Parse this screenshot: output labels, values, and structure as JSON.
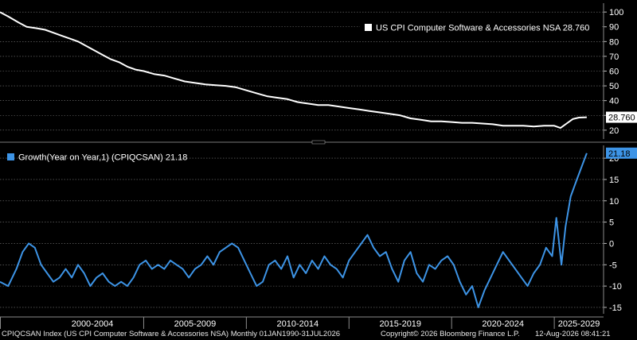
{
  "chart_data": [
    {
      "type": "line",
      "series": [
        {
          "name": "US CPI Computer Software & Accessories NSA",
          "last_value": "28.760",
          "color": "#ffffff",
          "points": [
            [
              1998.0,
              100
            ],
            [
              1998.4,
              97
            ],
            [
              1998.9,
              93
            ],
            [
              1999.3,
              90
            ],
            [
              1999.8,
              89
            ],
            [
              2000.2,
              88
            ],
            [
              2000.6,
              86
            ],
            [
              2001.0,
              84
            ],
            [
              2001.4,
              82
            ],
            [
              2001.8,
              80
            ],
            [
              2002.2,
              77
            ],
            [
              2002.6,
              74
            ],
            [
              2003.0,
              71
            ],
            [
              2003.4,
              68
            ],
            [
              2003.8,
              66
            ],
            [
              2004.2,
              63
            ],
            [
              2004.6,
              61
            ],
            [
              2005.0,
              60
            ],
            [
              2005.5,
              58
            ],
            [
              2006.0,
              57
            ],
            [
              2006.5,
              55
            ],
            [
              2007.0,
              53
            ],
            [
              2007.5,
              52
            ],
            [
              2008.0,
              51
            ],
            [
              2008.5,
              50.5
            ],
            [
              2009.0,
              50
            ],
            [
              2009.5,
              49
            ],
            [
              2010.0,
              47
            ],
            [
              2010.5,
              45
            ],
            [
              2011.0,
              43
            ],
            [
              2011.5,
              42
            ],
            [
              2012.0,
              41
            ],
            [
              2012.5,
              39
            ],
            [
              2013.0,
              38
            ],
            [
              2013.5,
              37
            ],
            [
              2014.0,
              37
            ],
            [
              2014.5,
              36
            ],
            [
              2015.0,
              35
            ],
            [
              2015.5,
              34
            ],
            [
              2016.0,
              33
            ],
            [
              2016.5,
              32
            ],
            [
              2017.0,
              31
            ],
            [
              2017.5,
              30
            ],
            [
              2018.0,
              28
            ],
            [
              2018.5,
              27
            ],
            [
              2019.0,
              26
            ],
            [
              2019.5,
              26
            ],
            [
              2020.0,
              25.5
            ],
            [
              2020.5,
              25
            ],
            [
              2021.0,
              25
            ],
            [
              2021.5,
              24.5
            ],
            [
              2022.0,
              24
            ],
            [
              2022.5,
              23
            ],
            [
              2023.0,
              23
            ],
            [
              2023.5,
              23
            ],
            [
              2024.0,
              22.5
            ],
            [
              2024.5,
              23
            ],
            [
              2025.0,
              23
            ],
            [
              2025.3,
              21.5
            ],
            [
              2025.6,
              24.5
            ],
            [
              2025.9,
              27.5
            ],
            [
              2026.2,
              28.5
            ],
            [
              2026.58,
              28.76
            ]
          ]
        }
      ],
      "yticks": [
        20,
        30,
        40,
        50,
        60,
        70,
        80,
        90,
        100
      ],
      "ylim": [
        14,
        106
      ]
    },
    {
      "type": "line",
      "series": [
        {
          "name": "Growth(Year on Year,1) (CPIQCSAN)",
          "last_value": "21.18",
          "color": "#3d94e6",
          "points": [
            [
              1998.0,
              -9
            ],
            [
              1998.4,
              -10
            ],
            [
              1998.8,
              -6
            ],
            [
              1999.1,
              -2
            ],
            [
              1999.4,
              0
            ],
            [
              1999.7,
              -1
            ],
            [
              2000.0,
              -5
            ],
            [
              2000.3,
              -7
            ],
            [
              2000.6,
              -9
            ],
            [
              2000.9,
              -8
            ],
            [
              2001.2,
              -6
            ],
            [
              2001.5,
              -8
            ],
            [
              2001.8,
              -5
            ],
            [
              2002.1,
              -7
            ],
            [
              2002.4,
              -10
            ],
            [
              2002.7,
              -8
            ],
            [
              2003.0,
              -7
            ],
            [
              2003.3,
              -9
            ],
            [
              2003.6,
              -10
            ],
            [
              2003.9,
              -9
            ],
            [
              2004.2,
              -10
            ],
            [
              2004.5,
              -8
            ],
            [
              2004.8,
              -5
            ],
            [
              2005.1,
              -4
            ],
            [
              2005.4,
              -6
            ],
            [
              2005.7,
              -5
            ],
            [
              2006.0,
              -6
            ],
            [
              2006.3,
              -4
            ],
            [
              2006.6,
              -5
            ],
            [
              2006.9,
              -6
            ],
            [
              2007.2,
              -8
            ],
            [
              2007.5,
              -6
            ],
            [
              2007.8,
              -5
            ],
            [
              2008.1,
              -3
            ],
            [
              2008.4,
              -5
            ],
            [
              2008.7,
              -2
            ],
            [
              2009.0,
              -1
            ],
            [
              2009.3,
              0
            ],
            [
              2009.6,
              -1
            ],
            [
              2009.9,
              -4
            ],
            [
              2010.2,
              -7
            ],
            [
              2010.5,
              -10
            ],
            [
              2010.8,
              -9
            ],
            [
              2011.1,
              -5
            ],
            [
              2011.4,
              -4
            ],
            [
              2011.7,
              -6
            ],
            [
              2012.0,
              -3
            ],
            [
              2012.3,
              -8
            ],
            [
              2012.6,
              -5
            ],
            [
              2012.9,
              -7
            ],
            [
              2013.2,
              -4
            ],
            [
              2013.5,
              -6
            ],
            [
              2013.8,
              -3
            ],
            [
              2014.1,
              -5
            ],
            [
              2014.4,
              -6
            ],
            [
              2014.7,
              -8
            ],
            [
              2015.0,
              -4
            ],
            [
              2015.3,
              -2
            ],
            [
              2015.6,
              0
            ],
            [
              2015.9,
              2
            ],
            [
              2016.2,
              -1
            ],
            [
              2016.5,
              -3
            ],
            [
              2016.8,
              -2
            ],
            [
              2017.1,
              -6
            ],
            [
              2017.4,
              -9
            ],
            [
              2017.7,
              -4
            ],
            [
              2018.0,
              -2
            ],
            [
              2018.3,
              -7
            ],
            [
              2018.6,
              -9
            ],
            [
              2018.9,
              -5
            ],
            [
              2019.2,
              -6
            ],
            [
              2019.5,
              -4
            ],
            [
              2019.8,
              -3
            ],
            [
              2020.1,
              -5
            ],
            [
              2020.4,
              -9
            ],
            [
              2020.7,
              -12
            ],
            [
              2021.0,
              -10
            ],
            [
              2021.3,
              -15
            ],
            [
              2021.6,
              -11
            ],
            [
              2021.9,
              -8
            ],
            [
              2022.2,
              -5
            ],
            [
              2022.5,
              -2
            ],
            [
              2022.8,
              -4
            ],
            [
              2023.1,
              -6
            ],
            [
              2023.4,
              -8
            ],
            [
              2023.7,
              -10
            ],
            [
              2024.0,
              -7
            ],
            [
              2024.3,
              -5
            ],
            [
              2024.6,
              -1
            ],
            [
              2024.9,
              -3
            ],
            [
              2025.1,
              6
            ],
            [
              2025.35,
              -5
            ],
            [
              2025.55,
              4
            ],
            [
              2025.8,
              11
            ],
            [
              2026.1,
              15
            ],
            [
              2026.58,
              21.18
            ]
          ]
        }
      ],
      "yticks": [
        -15,
        -10,
        -5,
        0,
        5,
        10,
        15,
        20
      ],
      "ylim": [
        -16.5,
        23
      ]
    }
  ],
  "xaxis": {
    "labels": [
      {
        "text": "2000-2004",
        "start": 2000,
        "end": 2005
      },
      {
        "text": "2005-2009",
        "start": 2005,
        "end": 2010
      },
      {
        "text": "2010-2014",
        "start": 2010,
        "end": 2015
      },
      {
        "text": "2015-2019",
        "start": 2015,
        "end": 2020
      },
      {
        "text": "2020-2024",
        "start": 2020,
        "end": 2025
      },
      {
        "text": "2025-2029",
        "start": 2025,
        "end": 2027.4
      }
    ],
    "range": [
      1998.0,
      2027.4
    ]
  },
  "footer": {
    "left": "CPIQCSAN Index (US CPI Computer Software & Accessories NSA) Monthly 01JAN1990-31JUL2026",
    "center": "Copyright© 2026 Bloomberg Finance L.P.",
    "right": "12-Aug-2026 08:41:21"
  }
}
